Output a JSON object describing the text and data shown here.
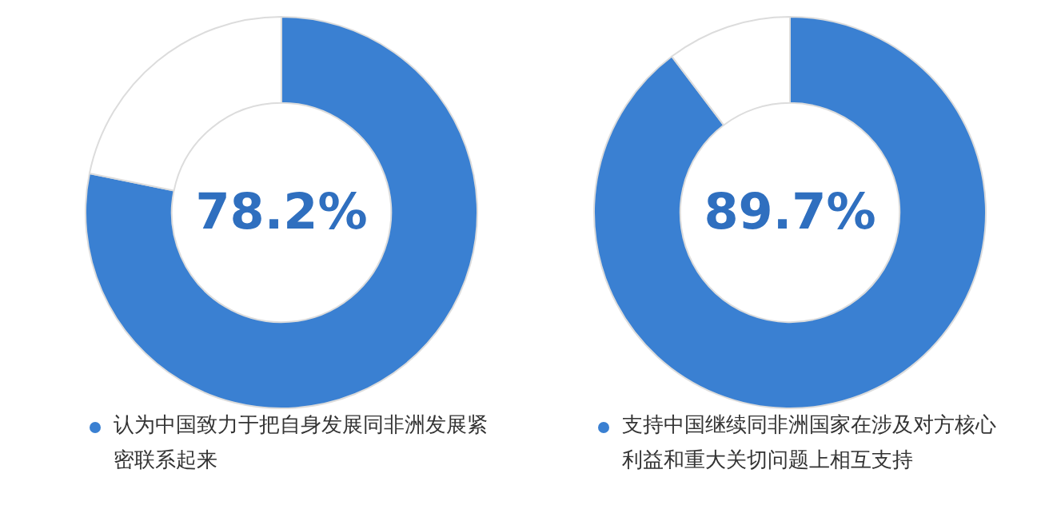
{
  "chart_data": [
    {
      "type": "donut",
      "categories": [
        "认为中国致力于把自身发展同非洲发展紧密联系起来",
        null
      ],
      "values": [
        78.2,
        21.8
      ],
      "colors": [
        "#3a80d2",
        "#ffffff"
      ],
      "value_labels": [
        "78.2%",
        null
      ],
      "legend": "bottom"
    },
    {
      "type": "donut",
      "categories": [
        "支持中国继续同非洲国家在涉及对方核心利益和重大关切问题上相互支持",
        null
      ],
      "values": [
        89.7,
        10.3
      ],
      "colors": [
        "#3a80d2",
        "#ffffff"
      ],
      "value_labels": [
        "89.7%",
        null
      ],
      "legend": "bottom"
    }
  ]
}
